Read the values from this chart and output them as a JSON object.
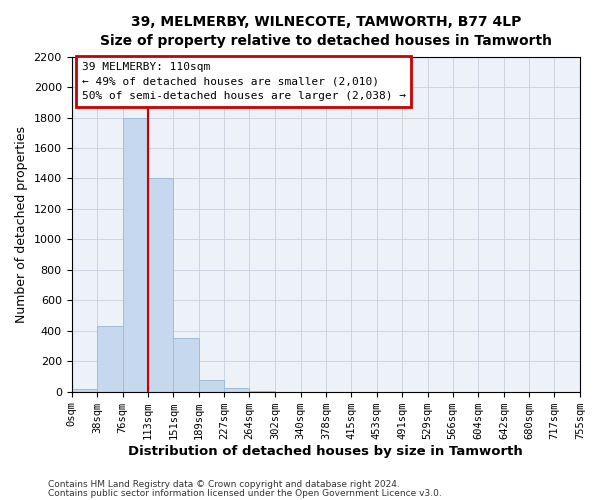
{
  "title": "39, MELMERBY, WILNECOTE, TAMWORTH, B77 4LP",
  "subtitle": "Size of property relative to detached houses in Tamworth",
  "xlabel": "Distribution of detached houses by size in Tamworth",
  "ylabel": "Number of detached properties",
  "bin_edges": [
    0,
    38,
    76,
    113,
    151,
    189,
    227,
    264,
    302,
    340,
    378,
    415,
    453,
    491,
    529,
    566,
    604,
    642,
    680,
    717,
    755
  ],
  "bin_labels": [
    "0sqm",
    "38sqm",
    "76sqm",
    "113sqm",
    "151sqm",
    "189sqm",
    "227sqm",
    "264sqm",
    "302sqm",
    "340sqm",
    "378sqm",
    "415sqm",
    "453sqm",
    "491sqm",
    "529sqm",
    "566sqm",
    "604sqm",
    "642sqm",
    "680sqm",
    "717sqm",
    "755sqm"
  ],
  "bar_heights": [
    20,
    430,
    1800,
    1400,
    350,
    75,
    25,
    5,
    0,
    0,
    0,
    0,
    0,
    0,
    0,
    0,
    0,
    0,
    0,
    0
  ],
  "bar_color": "#c5d8ed",
  "bar_edgecolor": "#a0bcd8",
  "vline_x": 113,
  "vline_color": "#cc0000",
  "ylim": [
    0,
    2200
  ],
  "annotation_title": "39 MELMERBY: 110sqm",
  "annotation_line1": "← 49% of detached houses are smaller (2,010)",
  "annotation_line2": "50% of semi-detached houses are larger (2,038) →",
  "annotation_box_edgecolor": "#cc0000",
  "footer_line1": "Contains HM Land Registry data © Crown copyright and database right 2024.",
  "footer_line2": "Contains public sector information licensed under the Open Government Licence v3.0.",
  "background_color": "#ffffff",
  "axes_facecolor": "#edf2f8",
  "grid_color": "#c8d0dc",
  "fig_width": 6.0,
  "fig_height": 5.0,
  "yticks": [
    0,
    200,
    400,
    600,
    800,
    1000,
    1200,
    1400,
    1600,
    1800,
    2000,
    2200
  ]
}
